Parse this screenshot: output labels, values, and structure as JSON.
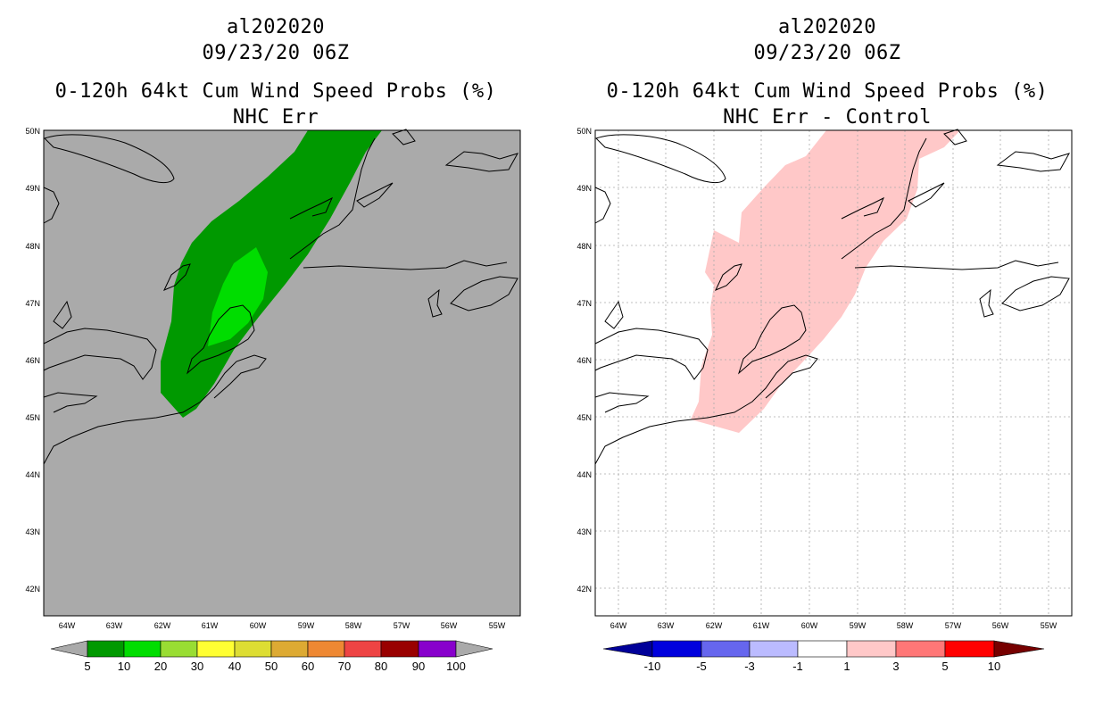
{
  "left_panel": {
    "title_lines": [
      "al202020",
      "09/23/20 06Z",
      "0-120h 64kt Cum Wind Speed Probs (%)",
      "NHC Err"
    ],
    "lat_labels": [
      "50N",
      "49N",
      "48N",
      "47N",
      "46N",
      "45N",
      "44N",
      "43N",
      "42N"
    ],
    "lon_labels": [
      "64W",
      "63W",
      "62W",
      "61W",
      "60W",
      "59W",
      "58W",
      "57W",
      "56W",
      "55W"
    ],
    "colorbar": {
      "labels": [
        "5",
        "10",
        "20",
        "30",
        "40",
        "50",
        "60",
        "70",
        "80",
        "90",
        "100"
      ],
      "colors": [
        "#009900",
        "#00dd00",
        "#99dd33",
        "#ffff33",
        "#dddd33",
        "#ddaa33",
        "#ee8833",
        "#ee4444",
        "#990000",
        "#8800cc"
      ],
      "low_color": "#aaaaaa",
      "high_color": "#aaaaaa"
    },
    "background_color": "#aaaaaa"
  },
  "right_panel": {
    "title_lines": [
      "al202020",
      "09/23/20 06Z",
      "0-120h 64kt Cum Wind Speed Probs (%)",
      "NHC Err - Control"
    ],
    "lat_labels": [
      "50N",
      "49N",
      "48N",
      "47N",
      "46N",
      "45N",
      "44N",
      "43N",
      "42N"
    ],
    "lon_labels": [
      "64W",
      "63W",
      "62W",
      "61W",
      "60W",
      "59W",
      "58W",
      "57W",
      "56W",
      "55W"
    ],
    "colorbar": {
      "labels": [
        "-10",
        "-5",
        "-3",
        "-1",
        "1",
        "3",
        "5",
        "10"
      ],
      "colors": [
        "#0000dd",
        "#6666ee",
        "#bbbbff",
        "#ffffff",
        "#ffc8c8",
        "#ff7777",
        "#ff0000"
      ],
      "low_color": "#000099",
      "high_color": "#770000"
    },
    "background_color": "#ffffff"
  }
}
